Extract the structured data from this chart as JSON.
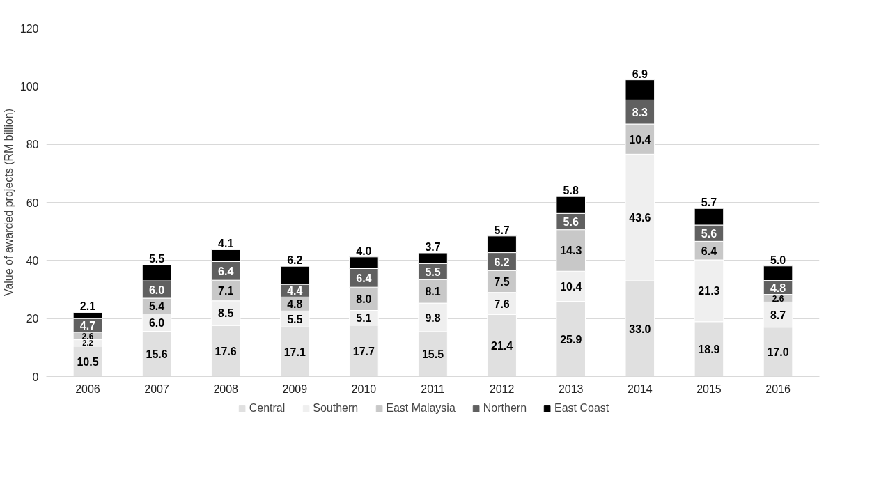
{
  "chart_data": {
    "type": "bar",
    "stacked": true,
    "ylabel": "Value of awarded projects (RM billion)",
    "categories": [
      "2006",
      "2007",
      "2008",
      "2009",
      "2010",
      "2011",
      "2012",
      "2013",
      "2014",
      "2015",
      "2016"
    ],
    "series": [
      {
        "name": "Central",
        "color": "#e0e0e0",
        "values": [
          10.5,
          15.6,
          17.6,
          17.1,
          17.7,
          15.5,
          21.4,
          25.9,
          33.0,
          18.9,
          17.0
        ],
        "value_labels": [
          "10.5",
          "15.6",
          "17.6",
          "17.1",
          "17.7",
          "15.5",
          "21.4",
          "25.9",
          "33.0",
          "18.9",
          "17.0"
        ]
      },
      {
        "name": "Southern",
        "color": "#efefef",
        "values": [
          2.2,
          6.0,
          8.5,
          5.5,
          5.1,
          9.8,
          7.6,
          10.4,
          43.6,
          21.3,
          8.7
        ],
        "value_labels": [
          "2.2",
          "6.0",
          "8.5",
          "5.5",
          "5.1",
          "9.8",
          "7.6",
          "10.4",
          "43.6",
          "21.3",
          "8.7"
        ]
      },
      {
        "name": "East Malaysia",
        "color": "#c8c8c8",
        "values": [
          2.6,
          5.4,
          7.1,
          4.8,
          8.0,
          8.1,
          7.5,
          14.3,
          10.4,
          6.4,
          2.6
        ],
        "value_labels": [
          "2.6",
          "5.4",
          "7.1",
          "4.8",
          "8.0",
          "8.1",
          "7.5",
          "14.3",
          "10.4",
          "6.4",
          "2.6"
        ]
      },
      {
        "name": "Northern",
        "color": "#606060",
        "values": [
          4.7,
          6.0,
          6.4,
          4.4,
          6.4,
          5.5,
          6.2,
          5.6,
          8.3,
          5.6,
          4.8
        ],
        "value_labels": [
          "4.7",
          "6.0",
          "6.4",
          "4.4",
          "6.4",
          "5.5",
          "6.2",
          "5.6",
          "8.3",
          "5.6",
          "4.8"
        ]
      },
      {
        "name": "East Coast",
        "color": "#000000",
        "values": [
          2.1,
          5.5,
          4.1,
          6.2,
          4.0,
          3.7,
          5.7,
          5.8,
          6.9,
          5.7,
          5.0
        ],
        "value_labels": [
          "2.1",
          "5.5",
          "4.1",
          "6.2",
          "4.0",
          "3.7",
          "5.7",
          "5.8",
          "6.9",
          "5.7",
          "5.0"
        ]
      }
    ],
    "ylim": [
      0,
      120
    ],
    "yticks": [
      0,
      20,
      40,
      60,
      80,
      100,
      120
    ],
    "grid": "y",
    "legend": "bottom",
    "data_labels": true
  }
}
